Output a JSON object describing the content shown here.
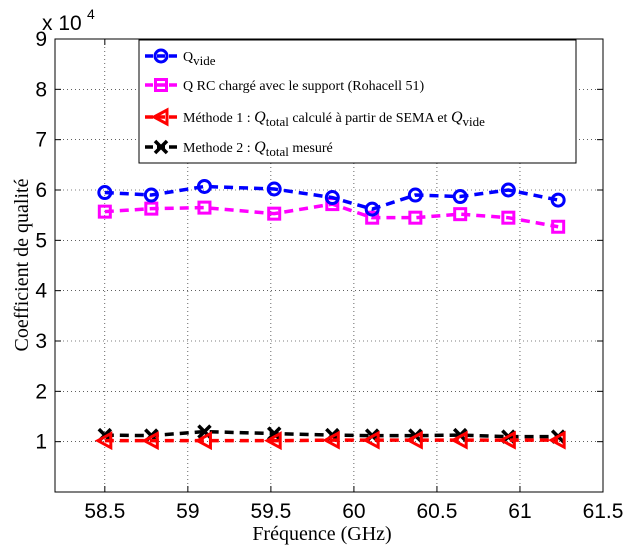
{
  "chart_data": {
    "type": "line",
    "xlabel": "Fréquence (GHz)",
    "ylabel": "Coefficient de qualité",
    "xlim": [
      58.2,
      61.5
    ],
    "ylim": [
      0,
      9
    ],
    "x_ticks": [
      58.5,
      59,
      59.5,
      60,
      60.5,
      61,
      61.5
    ],
    "x_tick_labels": [
      "58.5",
      "59",
      "59.5",
      "60",
      "60.5",
      "61",
      "61.5"
    ],
    "y_ticks": [
      1,
      2,
      3,
      4,
      5,
      6,
      7,
      8,
      9
    ],
    "y_tick_labels": [
      "1",
      "2",
      "3",
      "4",
      "5",
      "6",
      "7",
      "8",
      "9"
    ],
    "y_multiplier": {
      "base": "x 10",
      "exponent": "4"
    },
    "grid": "dotted",
    "legend_position": "top-right",
    "x": [
      58.5,
      58.78,
      59.1,
      59.52,
      59.87,
      60.11,
      60.37,
      60.64,
      60.93,
      61.23
    ],
    "series": [
      {
        "name": "Q_vide",
        "legend": {
          "main": "Q",
          "sub": "vide",
          "rest": ""
        },
        "color": "#0000ff",
        "marker": "circle",
        "values": [
          5.95,
          5.9,
          6.07,
          6.02,
          5.85,
          5.62,
          5.9,
          5.87,
          6.0,
          5.8
        ]
      },
      {
        "name": "Q_RC chargé avec le support (Rohacell 51)",
        "legend": {
          "main": "Q RC chargé avec le support (Rohacell 51)",
          "sub": "",
          "rest": ""
        },
        "color": "#ff00ff",
        "marker": "square",
        "values": [
          5.57,
          5.63,
          5.65,
          5.53,
          5.72,
          5.45,
          5.45,
          5.52,
          5.45,
          5.27
        ]
      },
      {
        "name": "Méthode 1 : Q_total calculé à partir de SEMA et Q_vide",
        "legend": {
          "main": "Méthode 1 : ",
          "italic": "Q",
          "sub": "total",
          "rest": " calculé à partir de SEMA et ",
          "italic2": "Q",
          "sub2": "vide"
        },
        "color": "#ff0000",
        "marker": "triangle-left",
        "values": [
          1.02,
          1.02,
          1.02,
          1.02,
          1.03,
          1.03,
          1.03,
          1.03,
          1.03,
          1.03
        ]
      },
      {
        "name": "Methode 2 : Q_total mesuré",
        "legend": {
          "main": "Methode 2 : ",
          "italic": "Q",
          "sub": "total",
          "rest": " mesuré"
        },
        "color": "#000000",
        "marker": "x",
        "values": [
          1.13,
          1.12,
          1.2,
          1.16,
          1.13,
          1.12,
          1.12,
          1.13,
          1.1,
          1.1
        ]
      }
    ]
  }
}
